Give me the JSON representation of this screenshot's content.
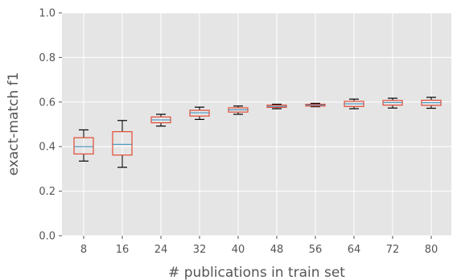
{
  "chart_data": {
    "type": "boxplot",
    "xlabel": "# publications in train set",
    "ylabel": "exact-match f1",
    "ylim": [
      0.0,
      1.0
    ],
    "yticks": [
      "0.0",
      "0.2",
      "0.4",
      "0.6",
      "0.8",
      "1.0"
    ],
    "grid": true,
    "categories": [
      "8",
      "16",
      "24",
      "32",
      "40",
      "48",
      "56",
      "64",
      "72",
      "80"
    ],
    "boxes": [
      {
        "whisker_low": 0.335,
        "q1": 0.367,
        "median": 0.4,
        "q3": 0.44,
        "whisker_high": 0.475
      },
      {
        "whisker_low": 0.307,
        "q1": 0.362,
        "median": 0.41,
        "q3": 0.467,
        "whisker_high": 0.517
      },
      {
        "whisker_low": 0.492,
        "q1": 0.507,
        "median": 0.52,
        "q3": 0.533,
        "whisker_high": 0.545
      },
      {
        "whisker_low": 0.522,
        "q1": 0.537,
        "median": 0.552,
        "q3": 0.563,
        "whisker_high": 0.577
      },
      {
        "whisker_low": 0.545,
        "q1": 0.555,
        "median": 0.565,
        "q3": 0.574,
        "whisker_high": 0.582
      },
      {
        "whisker_low": 0.57,
        "q1": 0.576,
        "median": 0.581,
        "q3": 0.586,
        "whisker_high": 0.59
      },
      {
        "whisker_low": 0.579,
        "q1": 0.582,
        "median": 0.586,
        "q3": 0.59,
        "whisker_high": 0.594
      },
      {
        "whisker_low": 0.57,
        "q1": 0.58,
        "median": 0.592,
        "q3": 0.603,
        "whisker_high": 0.613
      },
      {
        "whisker_low": 0.573,
        "q1": 0.586,
        "median": 0.598,
        "q3": 0.607,
        "whisker_high": 0.617
      },
      {
        "whisker_low": 0.572,
        "q1": 0.585,
        "median": 0.597,
        "q3": 0.608,
        "whisker_high": 0.621
      }
    ],
    "colors": {
      "background": "#e5e5e5",
      "grid": "#ffffff",
      "box": "#e24a33",
      "median": "#348abd",
      "whisker": "#000000",
      "tick_text": "#555555"
    }
  }
}
